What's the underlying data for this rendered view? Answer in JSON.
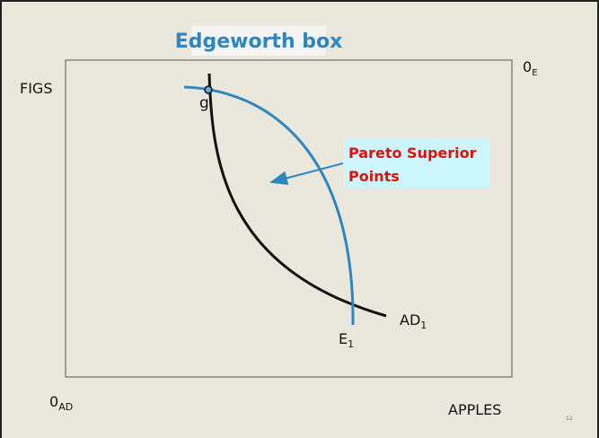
{
  "title": "Edgeworth box",
  "axis_labels": {
    "y": "FIGS",
    "x": "APPLES"
  },
  "origins": {
    "top_right": {
      "main": "0",
      "sub": "E"
    },
    "bottom_left": {
      "main": "0",
      "sub": "AD"
    }
  },
  "point_label": "g",
  "callout": {
    "lines": [
      "Pareto Superior",
      "Points"
    ]
  },
  "curve_labels": {
    "black": {
      "main": "AD",
      "sub": "1"
    },
    "blue": {
      "main": "E",
      "sub": "1"
    }
  },
  "slide_number": "12"
}
